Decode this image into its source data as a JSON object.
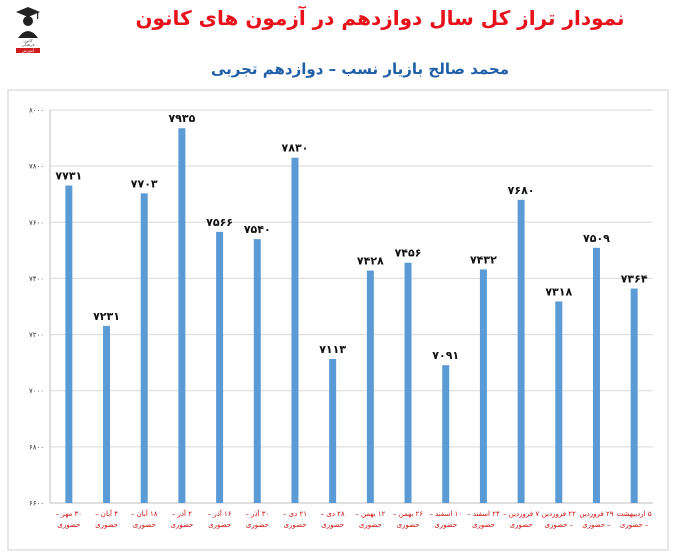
{
  "header": {
    "title": "نمودار تراز کل سال دوازدهم در آزمون های کانون",
    "subtitle": "محمد صالح بازیار نسب – دوازدهم تجربی"
  },
  "logo": {
    "icon": "graduate-icon",
    "lines": [
      "کانون",
      "فرهنگی",
      "آموزش"
    ]
  },
  "colors": {
    "bar": "#5b9bd5",
    "title": "#e8101a",
    "subtitle": "#1f5fa8",
    "category": "#cc1111",
    "grid": "#d9d9d9"
  },
  "chart_data": {
    "type": "bar",
    "title": "نمودار تراز کل سال دوازدهم در آزمون های کانون",
    "subtitle": "محمد صالح بازیار نسب – دوازدهم تجربی",
    "xlabel": "",
    "ylabel": "",
    "ylim": [
      6600,
      8000
    ],
    "yticks": [
      6600,
      6800,
      7000,
      7200,
      7400,
      7600,
      7800,
      8000
    ],
    "ytick_labels": [
      "۶۶۰۰",
      "۶۸۰۰",
      "۷۰۰۰",
      "۷۲۰۰",
      "۷۴۰۰",
      "۷۶۰۰",
      "۷۸۰۰",
      "۸۰۰۰"
    ],
    "grid": true,
    "categories": [
      [
        "۳۰ مهر –",
        "حضوری"
      ],
      [
        "۴ آبان –",
        "حضوری"
      ],
      [
        "۱۸ آبان –",
        "حضوری"
      ],
      [
        "۲ آذر –",
        "حضوری"
      ],
      [
        "۱۶ آذر –",
        "حضوری"
      ],
      [
        "۳۰ آذر –",
        "حضوری"
      ],
      [
        "۲۱ دی –",
        "حضوری"
      ],
      [
        "۲۸ دی –",
        "حضوری"
      ],
      [
        "۱۲ بهمن –",
        "حضوری"
      ],
      [
        "۲۶ بهمن –",
        "حضوری"
      ],
      [
        "۱۰ اسفند –",
        "حضوری"
      ],
      [
        "۲۴ اسفند –",
        "حضوری"
      ],
      [
        "۷ فروردین –",
        "حضوری"
      ],
      [
        "۲۲ فروردین",
        "– حضوری"
      ],
      [
        "۲۹ فروردین",
        "– حضوری"
      ],
      [
        "۵ اردیبهشت",
        "– حضوری"
      ]
    ],
    "values": [
      7731,
      7231,
      7703,
      7935,
      7566,
      7540,
      7830,
      7113,
      7428,
      7456,
      7091,
      7432,
      7680,
      7318,
      7509,
      7364
    ],
    "value_labels": [
      "۷۷۳۱",
      "۷۲۳۱",
      "۷۷۰۳",
      "۷۹۳۵",
      "۷۵۶۶",
      "۷۵۴۰",
      "۷۸۳۰",
      "۷۱۱۳",
      "۷۴۲۸",
      "۷۴۵۶",
      "۷۰۹۱",
      "۷۴۳۲",
      "۷۶۸۰",
      "۷۳۱۸",
      "۷۵۰۹",
      "۷۳۶۴"
    ]
  }
}
